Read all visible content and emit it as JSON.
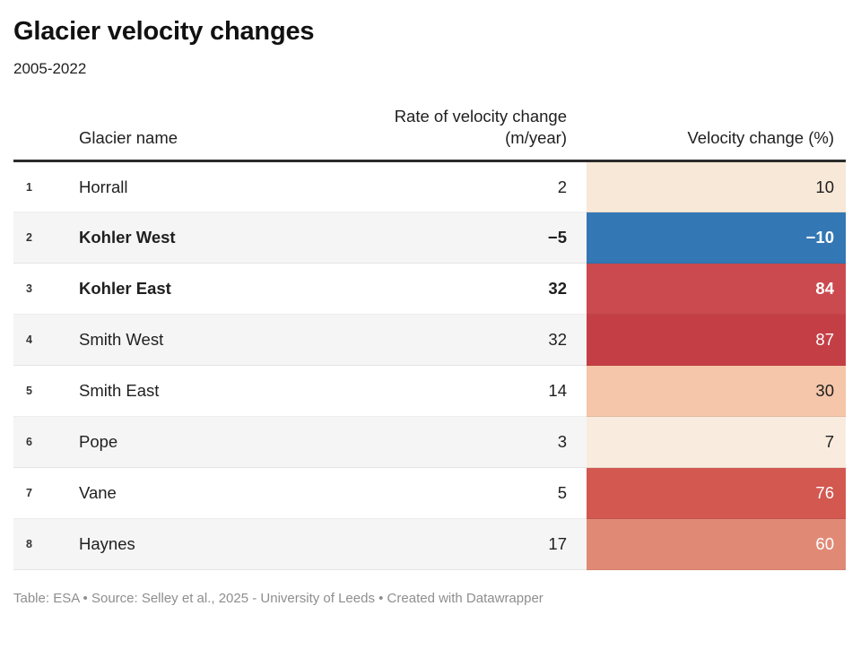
{
  "title": "Glacier velocity changes",
  "subtitle": "2005-2022",
  "footer": "Table: ESA • Source: Selley et al., 2025 - University of Leeds • Created with Datawrapper",
  "theme": {
    "stripe_color": "#f5f5f5",
    "header_border_color": "#2b2b2b",
    "negative_color": "#3377b4",
    "positive_color": "#c43f45"
  },
  "table": {
    "columns": {
      "name": "Glacier name",
      "rate_line1": "Rate of velocity change",
      "rate_line2": "(m/year)",
      "change": "Velocity change (%)"
    },
    "rows": [
      {
        "num": "1",
        "name": "Horrall",
        "rate": "2",
        "change": "10",
        "cell_color": "#f7e8d7",
        "text_light": false,
        "bold": false
      },
      {
        "num": "2",
        "name": "Kohler West",
        "rate": "−5",
        "change": "−10",
        "cell_color": "#3377b4",
        "text_light": true,
        "bold": true
      },
      {
        "num": "3",
        "name": "Kohler East",
        "rate": "32",
        "change": "84",
        "cell_color": "#cb4a4f",
        "text_light": true,
        "bold": true
      },
      {
        "num": "4",
        "name": "Smith West",
        "rate": "32",
        "change": "87",
        "cell_color": "#c43f45",
        "text_light": true,
        "bold": false
      },
      {
        "num": "5",
        "name": "Smith East",
        "rate": "14",
        "change": "30",
        "cell_color": "#f5c6a9",
        "text_light": false,
        "bold": false
      },
      {
        "num": "6",
        "name": "Pope",
        "rate": "3",
        "change": "7",
        "cell_color": "#f9ecdf",
        "text_light": false,
        "bold": false
      },
      {
        "num": "7",
        "name": "Vane",
        "rate": "5",
        "change": "76",
        "cell_color": "#d25850",
        "text_light": true,
        "bold": false
      },
      {
        "num": "8",
        "name": "Haynes",
        "rate": "17",
        "change": "60",
        "cell_color": "#e08a76",
        "text_light": true,
        "bold": false
      }
    ]
  },
  "chart_data": {
    "type": "table",
    "title": "Glacier velocity changes",
    "subtitle": "2005-2022",
    "columns": [
      "Glacier name",
      "Rate of velocity change (m/year)",
      "Velocity change (%)"
    ],
    "rows": [
      [
        "Horrall",
        2,
        10
      ],
      [
        "Kohler West",
        -5,
        -10
      ],
      [
        "Kohler East",
        32,
        84
      ],
      [
        "Smith West",
        32,
        87
      ],
      [
        "Smith East",
        14,
        30
      ],
      [
        "Pope",
        3,
        7
      ],
      [
        "Vane",
        5,
        76
      ],
      [
        "Haynes",
        17,
        60
      ]
    ],
    "heatmap_column": "Velocity change (%)",
    "color_scale": "diverging: negative = blue, low positive = cream, high positive = red",
    "source_note": "Table: ESA • Source: Selley et al., 2025 - University of Leeds • Created with Datawrapper"
  }
}
